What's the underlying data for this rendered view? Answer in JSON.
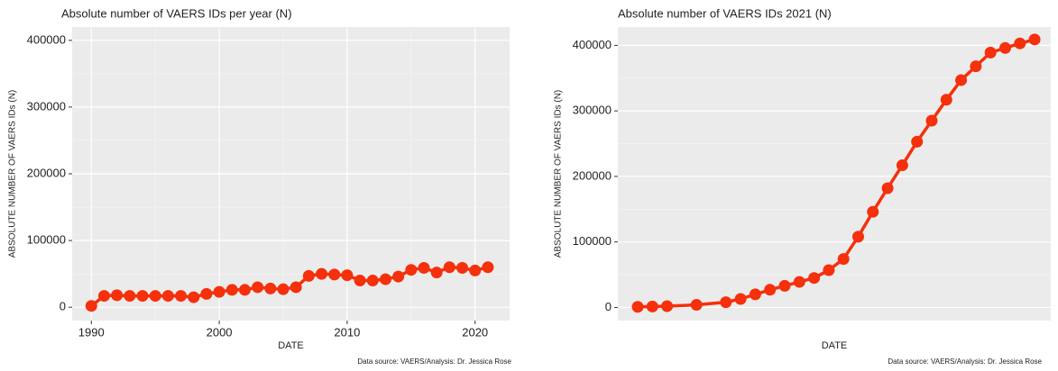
{
  "chart_data": [
    {
      "type": "line",
      "title": "Absolute number of VAERS IDs per year (N)",
      "xlabel": "DATE",
      "ylabel": "ABSOLUTE NUMBER OF VAERS IDs (N)",
      "note": "Data source: VAERS/Analysis: Dr. Jessica Rose",
      "x": [
        1990,
        1991,
        1992,
        1993,
        1994,
        1995,
        1996,
        1997,
        1998,
        1999,
        2000,
        2001,
        2002,
        2003,
        2004,
        2005,
        2006,
        2007,
        2008,
        2009,
        2010,
        2011,
        2012,
        2013,
        2014,
        2015,
        2016,
        2017,
        2018,
        2019,
        2020,
        2021
      ],
      "values": [
        2000,
        17000,
        18000,
        17000,
        17000,
        17000,
        17000,
        17000,
        15000,
        20000,
        23000,
        26000,
        26000,
        30000,
        28000,
        27000,
        30000,
        47000,
        50000,
        49000,
        48000,
        40000,
        40000,
        42000,
        46000,
        56000,
        59000,
        52000,
        60000,
        59000,
        55000,
        60000
      ],
      "color": "#f5300c",
      "xlim": [
        1988.5,
        2022.7
      ],
      "xticks": [
        1990,
        2000,
        2010,
        2020
      ],
      "ylim": [
        -20000,
        420000
      ],
      "yticks": [
        0,
        100000,
        200000,
        300000,
        400000
      ],
      "grid": true
    },
    {
      "type": "line",
      "title": "Absolute number of VAERS IDs 2021 (N)",
      "xlabel": "DATE",
      "ylabel": "ABSOLUTE NUMBER OF VAERS IDs (N)",
      "note": "Data source: VAERS/Analysis: Dr. Jessica Rose",
      "x": [
        0,
        1,
        2,
        4,
        6,
        7,
        8,
        9,
        10,
        11,
        12,
        13,
        14,
        15,
        16,
        17,
        18,
        19,
        20,
        21,
        22,
        23,
        24,
        25,
        26,
        27
      ],
      "values": [
        1000,
        1500,
        2000,
        4000,
        8000,
        13000,
        20000,
        27000,
        33000,
        39000,
        45000,
        57000,
        74000,
        108000,
        146000,
        182000,
        217000,
        253000,
        285000,
        317000,
        347000,
        368000,
        389000,
        396000,
        403000,
        409000
      ],
      "color": "#f5300c",
      "xlim": [
        -1.35,
        28.1
      ],
      "ylim": [
        -20000,
        428000
      ],
      "yticks": [
        0,
        100000,
        200000,
        300000,
        400000
      ],
      "grid": true
    }
  ]
}
